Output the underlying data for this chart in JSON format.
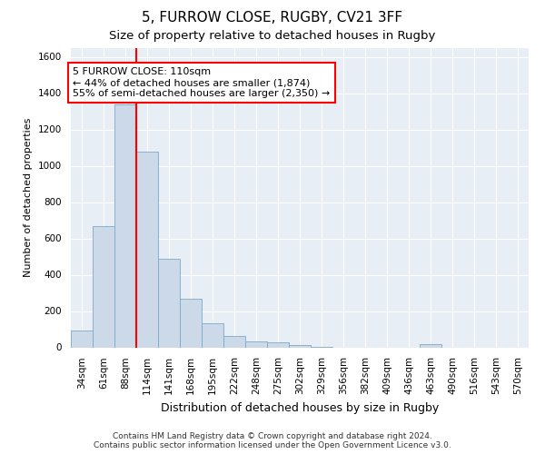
{
  "title1": "5, FURROW CLOSE, RUGBY, CV21 3FF",
  "title2": "Size of property relative to detached houses in Rugby",
  "xlabel": "Distribution of detached houses by size in Rugby",
  "ylabel": "Number of detached properties",
  "categories": [
    "34sqm",
    "61sqm",
    "88sqm",
    "114sqm",
    "141sqm",
    "168sqm",
    "195sqm",
    "222sqm",
    "248sqm",
    "275sqm",
    "302sqm",
    "329sqm",
    "356sqm",
    "382sqm",
    "409sqm",
    "436sqm",
    "463sqm",
    "490sqm",
    "516sqm",
    "543sqm",
    "570sqm"
  ],
  "values": [
    95,
    670,
    1340,
    1080,
    490,
    270,
    135,
    65,
    35,
    30,
    15,
    5,
    0,
    0,
    0,
    0,
    20,
    0,
    0,
    0,
    0
  ],
  "bar_color": "#ccd9e8",
  "bar_edge_color": "#7fa8c9",
  "vline_x_index": 2.5,
  "vline_color": "red",
  "annotation_text": "5 FURROW CLOSE: 110sqm\n← 44% of detached houses are smaller (1,874)\n55% of semi-detached houses are larger (2,350) →",
  "annotation_box_color": "white",
  "annotation_box_edge_color": "red",
  "ylim": [
    0,
    1650
  ],
  "yticks": [
    0,
    200,
    400,
    600,
    800,
    1000,
    1200,
    1400,
    1600
  ],
  "footer1": "Contains HM Land Registry data © Crown copyright and database right 2024.",
  "footer2": "Contains public sector information licensed under the Open Government Licence v3.0.",
  "bg_color": "#e8eef5",
  "title1_fontsize": 11,
  "title2_fontsize": 9.5,
  "xlabel_fontsize": 9,
  "ylabel_fontsize": 8,
  "tick_fontsize": 7.5,
  "footer_fontsize": 6.5,
  "annotation_fontsize": 8
}
